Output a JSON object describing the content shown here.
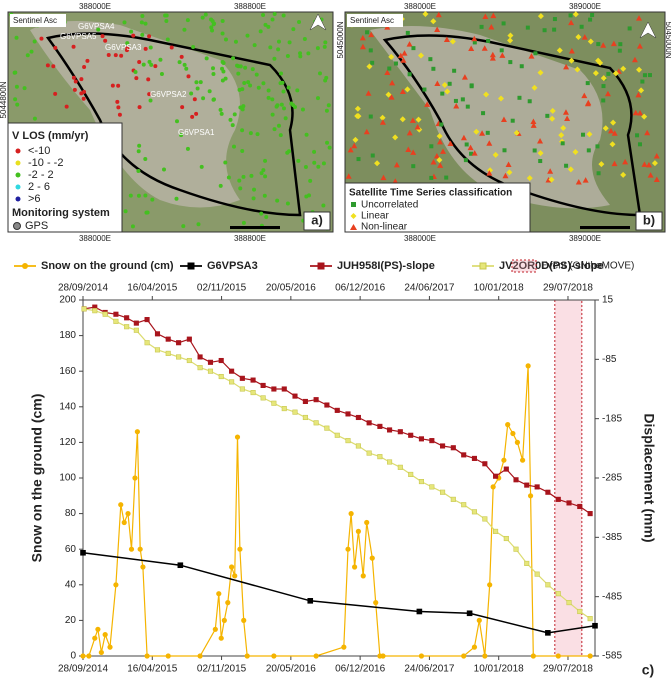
{
  "panel_a": {
    "source": "Sentinel Asc",
    "x_coords": [
      "388000E",
      "388800E"
    ],
    "y_coord": "5044800N",
    "stations": [
      "G6VPSA4",
      "G6VPSA5",
      "G6VPSA3",
      "G6VPSA2",
      "G6VPSA1"
    ],
    "legend_title": "V LOS (mm/yr)",
    "classes": [
      "<-10",
      "-10 - -2",
      "-2 - 2",
      "2 - 6",
      ">6"
    ],
    "monitoring_title": "Monitoring system",
    "monitoring": "GPS",
    "label": "a)"
  },
  "panel_b": {
    "source": "Sentinel Asc",
    "x_coords": [
      "388000E",
      "389000E"
    ],
    "y_coord": "5045000N",
    "legend_title": "Satellite Time Series classification",
    "classes": [
      "Uncorrelated",
      "Linear",
      "Non-linear"
    ],
    "label": "b)"
  },
  "chart_data": {
    "type": "line",
    "label": "c)",
    "y_label": "Snow on the ground (cm)",
    "y2_label": "Displacement (mm)",
    "xlim": [
      "28/09/2014",
      "15/10/2018"
    ],
    "xticks": [
      "28/09/2014",
      "16/04/2015",
      "02/11/2015",
      "20/05/2016",
      "06/12/2016",
      "24/06/2017",
      "10/01/2018",
      "29/07/2018"
    ],
    "ylim": [
      0,
      200
    ],
    "yticks": [
      0,
      20,
      40,
      60,
      80,
      100,
      120,
      140,
      160,
      180,
      200
    ],
    "y2lim": [
      -585,
      15
    ],
    "y2ticks": [
      -585,
      -485,
      -385,
      -285,
      -185,
      -85,
      15
    ],
    "event": {
      "name": "Event (ONtheMOVE)",
      "start": "21/06/2018",
      "end": "07/09/2018"
    },
    "series": [
      {
        "name": "Snow on the ground (cm)",
        "color": "#f5b400",
        "marker": "circle",
        "axis": "y",
        "x": [
          "28/09/2014",
          "15/10/2014",
          "01/11/2014",
          "10/11/2014",
          "20/11/2014",
          "01/12/2014",
          "15/12/2014",
          "01/01/2015",
          "15/01/2015",
          "25/01/2015",
          "05/02/2015",
          "15/02/2015",
          "25/02/2015",
          "04/03/2015",
          "12/03/2015",
          "20/03/2015",
          "01/04/2015",
          "01/06/2015",
          "01/09/2015",
          "15/10/2015",
          "25/10/2015",
          "01/11/2015",
          "10/11/2015",
          "20/11/2015",
          "01/12/2015",
          "10/12/2015",
          "18/12/2015",
          "25/12/2015",
          "05/01/2016",
          "15/01/2016",
          "01/04/2016",
          "01/08/2016",
          "20/10/2016",
          "01/11/2016",
          "10/11/2016",
          "20/11/2016",
          "01/12/2016",
          "15/12/2016",
          "25/12/2016",
          "10/01/2017",
          "20/01/2017",
          "01/02/2017",
          "10/02/2017",
          "01/06/2017",
          "01/10/2017",
          "01/11/2017",
          "15/11/2017",
          "01/12/2017",
          "15/12/2017",
          "25/12/2017",
          "10/01/2018",
          "25/01/2018",
          "05/02/2018",
          "20/02/2018",
          "05/03/2018",
          "20/03/2018",
          "05/04/2018",
          "12/04/2018",
          "20/04/2018",
          "01/07/2018",
          "01/10/2018"
        ],
        "values": [
          0,
          0,
          10,
          15,
          2,
          12,
          5,
          40,
          85,
          75,
          80,
          60,
          100,
          126,
          60,
          50,
          0,
          0,
          0,
          15,
          35,
          10,
          20,
          30,
          50,
          45,
          123,
          60,
          20,
          0,
          0,
          0,
          5,
          60,
          80,
          50,
          70,
          45,
          75,
          55,
          30,
          0,
          0,
          0,
          0,
          5,
          20,
          0,
          40,
          95,
          100,
          110,
          130,
          125,
          120,
          110,
          163,
          90,
          0,
          0,
          0
        ]
      },
      {
        "name": "G6VPSA3",
        "color": "#000000",
        "marker": "square",
        "axis": "y2",
        "x": [
          "28/09/2014",
          "06/07/2015",
          "15/07/2016",
          "26/05/2017",
          "18/10/2017",
          "01/06/2018",
          "15/10/2018"
        ],
        "values": [
          -411,
          -432,
          -492,
          -510,
          -513,
          -546,
          -534
        ]
      },
      {
        "name": "JUH958I(PS)-slope",
        "color": "#a8141c",
        "marker": "square",
        "axis": "y2",
        "x": [
          "01/10/2014",
          "01/11/2014",
          "01/12/2014",
          "01/01/2015",
          "01/02/2015",
          "01/03/2015",
          "01/04/2015",
          "01/05/2015",
          "01/06/2015",
          "01/07/2015",
          "01/08/2015",
          "01/09/2015",
          "01/10/2015",
          "01/11/2015",
          "01/12/2015",
          "01/01/2016",
          "01/02/2016",
          "01/03/2016",
          "01/04/2016",
          "01/05/2016",
          "01/06/2016",
          "01/07/2016",
          "01/08/2016",
          "01/09/2016",
          "01/10/2016",
          "01/11/2016",
          "01/12/2016",
          "01/01/2017",
          "01/02/2017",
          "01/03/2017",
          "01/04/2017",
          "01/05/2017",
          "01/06/2017",
          "01/07/2017",
          "01/08/2017",
          "01/09/2017",
          "01/10/2017",
          "01/11/2017",
          "01/12/2017",
          "01/01/2018",
          "01/02/2018",
          "01/03/2018",
          "01/04/2018",
          "01/05/2018",
          "01/06/2018",
          "01/07/2018",
          "01/08/2018",
          "01/09/2018",
          "01/10/2018"
        ],
        "values": [
          0,
          3,
          -6,
          -9,
          -15,
          -24,
          -18,
          -42,
          -51,
          -57,
          -51,
          -81,
          -90,
          -87,
          -105,
          -117,
          -120,
          -129,
          -135,
          -135,
          -147,
          -156,
          -153,
          -162,
          -171,
          -177,
          -183,
          -192,
          -198,
          -204,
          -207,
          -213,
          -219,
          -222,
          -231,
          -234,
          -246,
          -252,
          -261,
          -282,
          -270,
          -288,
          -297,
          -300,
          -309,
          -321,
          -327,
          -333,
          -345
        ]
      },
      {
        "name": "JV2OR0D(PS)-slope",
        "color": "#e6e67a",
        "marker": "square",
        "axis": "y2",
        "x": [
          "01/10/2014",
          "01/11/2014",
          "01/12/2014",
          "01/01/2015",
          "01/02/2015",
          "01/03/2015",
          "01/04/2015",
          "01/05/2015",
          "01/06/2015",
          "01/07/2015",
          "01/08/2015",
          "01/09/2015",
          "01/10/2015",
          "01/11/2015",
          "01/12/2015",
          "01/01/2016",
          "01/02/2016",
          "01/03/2016",
          "01/04/2016",
          "01/05/2016",
          "01/06/2016",
          "01/07/2016",
          "01/08/2016",
          "01/09/2016",
          "01/10/2016",
          "01/11/2016",
          "01/12/2016",
          "01/01/2017",
          "01/02/2017",
          "01/03/2017",
          "01/04/2017",
          "01/05/2017",
          "01/06/2017",
          "01/07/2017",
          "01/08/2017",
          "01/09/2017",
          "01/10/2017",
          "01/11/2017",
          "01/12/2017",
          "01/01/2018",
          "01/02/2018",
          "01/03/2018",
          "01/04/2018",
          "01/05/2018",
          "01/06/2018",
          "01/07/2018",
          "01/08/2018",
          "01/09/2018",
          "01/10/2018"
        ],
        "values": [
          0,
          -3,
          -9,
          -21,
          -30,
          -36,
          -57,
          -69,
          -75,
          -81,
          -87,
          -99,
          -105,
          -114,
          -123,
          -135,
          -141,
          -150,
          -159,
          -168,
          -174,
          -183,
          -192,
          -201,
          -213,
          -222,
          -231,
          -243,
          -249,
          -258,
          -267,
          -279,
          -291,
          -300,
          -309,
          -321,
          -330,
          -342,
          -354,
          -375,
          -387,
          -405,
          -429,
          -447,
          -465,
          -480,
          -495,
          -510,
          -522
        ]
      }
    ]
  }
}
